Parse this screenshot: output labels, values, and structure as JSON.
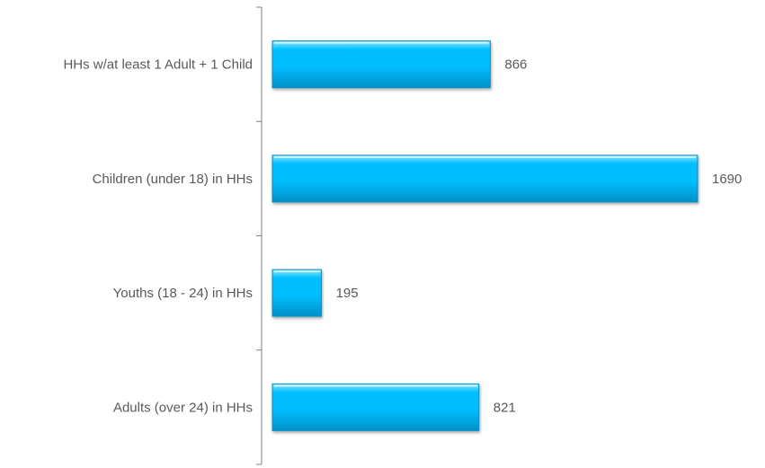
{
  "chart_data": {
    "type": "bar",
    "orientation": "horizontal",
    "categories": [
      "HHs w/at least 1 Adult + 1 Child",
      "Children (under 18) in HHs",
      "Youths (18 - 24) in HHs",
      "Adults (over 24) in HHs"
    ],
    "values": [
      866,
      1690,
      195,
      821
    ],
    "title": "",
    "xlabel": "",
    "ylabel": "",
    "data_labels": true,
    "grid": false,
    "legend": "none"
  },
  "colors": {
    "bar_fill": "#00BFFF",
    "bar_highlight": "#8FE6FF",
    "bar_shadow": "#0090C8",
    "axis": "#7F7F7F",
    "text": "#595959"
  }
}
